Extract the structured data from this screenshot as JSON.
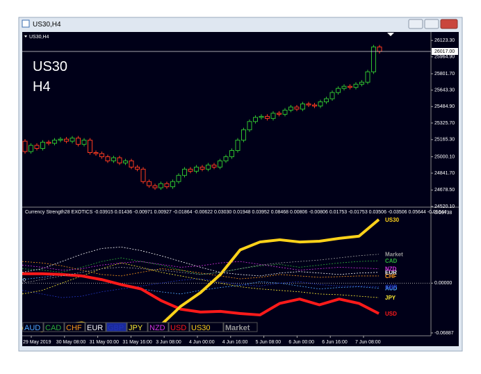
{
  "window": {
    "title": "US30,H4"
  },
  "chart_label": "US30,H4",
  "overlay": {
    "symbol": "US30",
    "timeframe": "H4"
  },
  "chart_data": [
    {
      "type": "candlestick",
      "open": [
        25150,
        25050,
        25110,
        25080,
        25140,
        25130,
        25160,
        25170,
        25150,
        25180,
        25120,
        25160,
        25040,
        25030,
        25000,
        24960,
        24990,
        24940,
        24960,
        24900,
        24880,
        24760,
        24720,
        24700,
        24740,
        24710,
        24760,
        24820,
        24880,
        24860,
        24900,
        24880,
        24920,
        24900,
        24960,
        25000,
        25060,
        25160,
        25260,
        25340,
        25380,
        25390,
        25370,
        25420,
        25410,
        25450,
        25480,
        25460,
        25510,
        25500,
        25490,
        25530,
        25560,
        25620,
        25660,
        25680,
        25670,
        25700,
        25720,
        25820,
        26060
      ],
      "high": [
        25170,
        25130,
        25130,
        25160,
        25160,
        25180,
        25190,
        25190,
        25200,
        25200,
        25180,
        25180,
        25060,
        25050,
        25020,
        25010,
        25010,
        24980,
        24980,
        24920,
        24900,
        24780,
        24740,
        24760,
        24760,
        24780,
        24840,
        24900,
        24900,
        24920,
        24920,
        24940,
        24940,
        24980,
        25020,
        25080,
        25180,
        25280,
        25360,
        25400,
        25410,
        25410,
        25440,
        25440,
        25470,
        25500,
        25500,
        25530,
        25530,
        25520,
        25550,
        25580,
        25640,
        25680,
        25700,
        25700,
        25720,
        25740,
        25840,
        26080,
        26080
      ],
      "low": [
        25030,
        25030,
        25060,
        25060,
        25110,
        25110,
        25140,
        25130,
        25130,
        25100,
        25100,
        25020,
        25010,
        24980,
        24940,
        24940,
        24920,
        24920,
        24880,
        24860,
        24740,
        24700,
        24680,
        24680,
        24690,
        24690,
        24740,
        24800,
        24840,
        24840,
        24860,
        24860,
        24880,
        24880,
        24940,
        24980,
        25040,
        25140,
        25240,
        25320,
        25360,
        25350,
        25350,
        25390,
        25390,
        25430,
        25440,
        25440,
        25480,
        25470,
        25470,
        25510,
        25540,
        25600,
        25640,
        25650,
        25650,
        25680,
        25700,
        25800,
        25997
      ],
      "close": [
        25050,
        25110,
        25080,
        25140,
        25130,
        25160,
        25170,
        25150,
        25180,
        25120,
        25160,
        25040,
        25030,
        25000,
        24960,
        24990,
        24940,
        24960,
        24900,
        24880,
        24760,
        24720,
        24700,
        24740,
        24710,
        24760,
        24820,
        24880,
        24860,
        24900,
        24880,
        24920,
        24900,
        24960,
        25000,
        25060,
        25160,
        25260,
        25340,
        25380,
        25390,
        25370,
        25420,
        25410,
        25450,
        25480,
        25460,
        25510,
        25500,
        25490,
        25530,
        25560,
        25620,
        25660,
        25680,
        25670,
        25700,
        25720,
        25820,
        26060,
        26017
      ],
      "up_color": "#2fbf2f",
      "down_color": "#ff3b1f",
      "ylim": [
        24513,
        26205
      ],
      "yticks": [
        {
          "value": 26123.3,
          "label": "26123.30"
        },
        {
          "value": 25964.9,
          "label": "25964.90"
        },
        {
          "value": 25801.7,
          "label": "25801.70"
        },
        {
          "value": 25643.3,
          "label": "25643.30"
        },
        {
          "value": 25484.9,
          "label": "25484.90"
        },
        {
          "value": 25325.7,
          "label": "25325.70"
        },
        {
          "value": 25165.3,
          "label": "25165.30"
        },
        {
          "value": 25000.1,
          "label": "25000.10"
        },
        {
          "value": 24841.7,
          "label": "24841.70"
        },
        {
          "value": 24678.5,
          "label": "24678.50"
        },
        {
          "value": 24520.1,
          "label": "24520.10"
        }
      ],
      "current_price": {
        "value": 26017,
        "label": "26017.00"
      }
    },
    {
      "type": "line",
      "title": "Currency Strength28 EXOTICS -0.03915 0.01436 -0.00971 0.00927 -0.01864 -0.00622 0.03030 0.01948 0.03952 0.08468 0.00806 -0.00806 0.01753 -0.01753 0.03506 -0.03506 0.05644 -0.05644",
      "zero_label": "0",
      "ylim": [
        -0.0728,
        0.1042
      ],
      "yticks": [
        0.09738,
        {
          "value": 0,
          "label": "0.00000"
        },
        -0.06887
      ],
      "series": [
        {
          "name": "AUD",
          "color": "#4fa8ff",
          "values": [
            0.005,
            0.008,
            0.012,
            0.01,
            0.004,
            -0.002,
            -0.008,
            -0.012,
            -0.015,
            -0.01,
            -0.006,
            -0.003,
            0.002,
            0.0,
            -0.004,
            -0.008,
            -0.006,
            -0.005,
            -0.007
          ]
        },
        {
          "name": "CAD",
          "color": "#2fae3a",
          "values": [
            0.02,
            0.018,
            0.015,
            0.022,
            0.03,
            0.035,
            0.03,
            0.025,
            0.018,
            0.012,
            0.015,
            0.02,
            0.024,
            0.026,
            0.022,
            0.025,
            0.028,
            0.03,
            0.031
          ]
        },
        {
          "name": "CHF",
          "color": "#ff9a1a",
          "values": [
            0.03,
            0.028,
            0.024,
            0.018,
            0.012,
            0.01,
            0.015,
            0.02,
            0.018,
            0.014,
            0.01,
            0.006,
            0.008,
            0.012,
            0.01,
            0.008,
            0.009,
            0.01,
            0.01
          ]
        },
        {
          "name": "EUR",
          "color": "#ffffff",
          "values": [
            0.015,
            0.02,
            0.03,
            0.04,
            0.048,
            0.05,
            0.045,
            0.038,
            0.03,
            0.022,
            0.015,
            0.012,
            0.01,
            0.014,
            0.016,
            0.014,
            0.012,
            0.014,
            0.015
          ]
        },
        {
          "name": "GBP",
          "color": "#2233bb",
          "values": [
            -0.01,
            -0.015,
            -0.02,
            -0.018,
            -0.012,
            -0.008,
            -0.004,
            0.0,
            0.004,
            0.006,
            0.002,
            -0.002,
            -0.004,
            0.0,
            0.002,
            -0.002,
            -0.004,
            -0.004,
            -0.005
          ]
        },
        {
          "name": "JPY",
          "color": "#ffee33",
          "values": [
            -0.015,
            -0.01,
            0.0,
            0.01,
            0.02,
            0.028,
            0.022,
            0.015,
            0.01,
            0.005,
            0.0,
            -0.005,
            -0.008,
            -0.01,
            -0.012,
            -0.015,
            -0.016,
            -0.018,
            -0.02
          ]
        },
        {
          "name": "NZD",
          "color": "#d534e0",
          "values": [
            0.025,
            0.022,
            0.018,
            0.02,
            0.025,
            0.028,
            0.03,
            0.026,
            0.022,
            0.024,
            0.028,
            0.03,
            0.026,
            0.022,
            0.018,
            0.02,
            0.022,
            0.021,
            0.02
          ]
        },
        {
          "name": "USD",
          "color": "#ff1a1a",
          "values": [
            0.013,
            0.013,
            0.012,
            0.01,
            0.005,
            -0.002,
            -0.008,
            -0.024,
            -0.036,
            -0.04,
            -0.039,
            -0.042,
            -0.044,
            -0.028,
            -0.022,
            -0.03,
            -0.022,
            -0.028,
            -0.042
          ]
        },
        {
          "name": "US30",
          "color": "#ffd21a",
          "values": [
            -0.062,
            -0.066,
            -0.058,
            -0.055,
            -0.06,
            -0.06,
            -0.065,
            -0.058,
            -0.032,
            -0.013,
            0.012,
            0.046,
            0.057,
            0.06,
            0.057,
            0.058,
            0.062,
            0.065,
            0.088
          ]
        },
        {
          "name": "Market",
          "color": "#9a9a9a",
          "values": [
            0.0,
            0.005,
            0.01,
            0.015,
            0.02,
            0.022,
            0.02,
            0.018,
            0.015,
            0.012,
            0.015,
            0.02,
            0.025,
            0.028,
            0.03,
            0.032,
            0.035,
            0.038,
            0.04
          ]
        }
      ],
      "time_labels": [
        "29 May 2019",
        "30 May 08:00",
        "31 May 00:00",
        "31 May 16:00",
        "3 Jun 08:00",
        "4 Jun 00:00",
        "4 Jun 16:00",
        "5 Jun 08:00",
        "6 Jun 00:00",
        "6 Jun 16:00",
        "7 Jun 08:00"
      ]
    }
  ]
}
